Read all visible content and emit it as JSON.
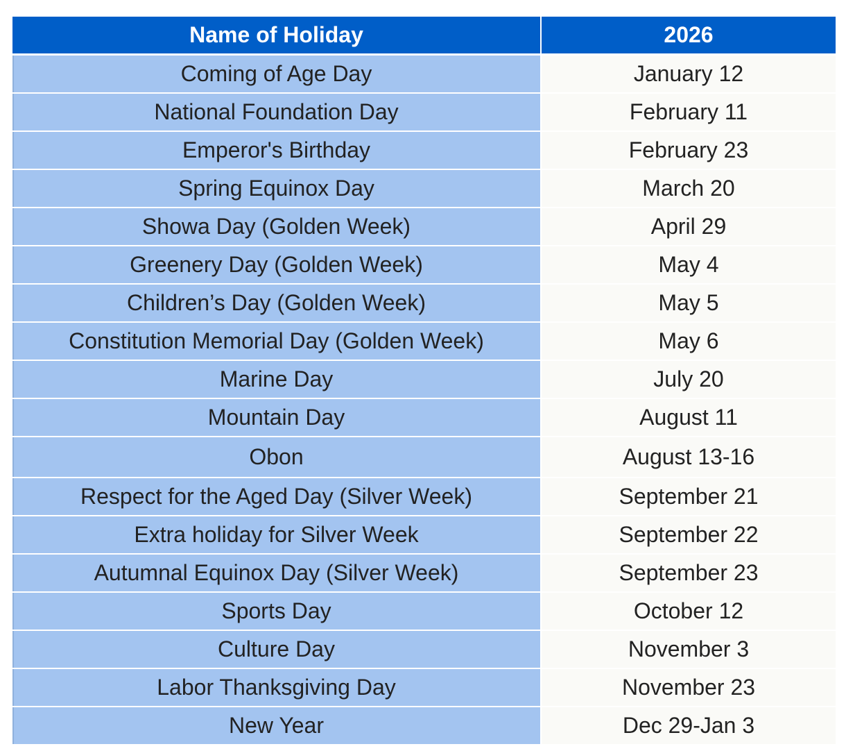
{
  "table": {
    "headers": [
      "Name of Holiday",
      "2026"
    ],
    "rows": [
      {
        "name": "Coming of Age Day",
        "date": "January 12"
      },
      {
        "name": "National Foundation Day",
        "date": "February 11"
      },
      {
        "name": "Emperor's Birthday",
        "date": "February 23"
      },
      {
        "name": "Spring Equinox Day",
        "date": "March 20"
      },
      {
        "name": "Showa Day (Golden Week)",
        "date": "April 29"
      },
      {
        "name": "Greenery Day (Golden Week)",
        "date": "May 4"
      },
      {
        "name": "Children’s Day (Golden Week)",
        "date": "May 5"
      },
      {
        "name": "Constitution Memorial Day (Golden Week)",
        "date": "May 6"
      },
      {
        "name": "Marine Day",
        "date": "July 20"
      },
      {
        "name": "Mountain Day",
        "date": "August 11"
      },
      {
        "name": "Obon",
        "date": "August 13-16"
      },
      {
        "name": "Respect for the Aged Day (Silver Week)",
        "date": "September 21"
      },
      {
        "name": "Extra holiday for Silver Week",
        "date": "September 22"
      },
      {
        "name": "Autumnal Equinox Day (Silver Week)",
        "date": "September 23"
      },
      {
        "name": "Sports Day",
        "date": "October 12"
      },
      {
        "name": "Culture Day",
        "date": "November 3"
      },
      {
        "name": "Labor Thanksgiving Day",
        "date": "November 23"
      },
      {
        "name": "New Year",
        "date": "Dec 29-Jan 3"
      }
    ]
  },
  "colors": {
    "header": "#005ec8",
    "name_column": "#a3c4f0",
    "date_column": "#fafaf7"
  }
}
